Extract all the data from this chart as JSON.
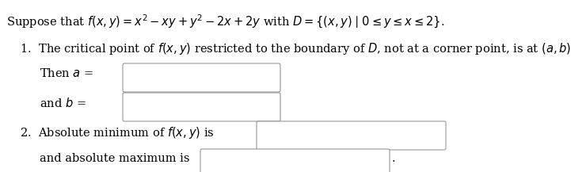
{
  "background_color": "#ffffff",
  "figsize": [
    7.21,
    2.17
  ],
  "dpi": 100,
  "line1": "Suppose that $f(x, y) = x^2 - xy + y^2 - 2x + 2y$ with $D = \\{(x, y) \\mid 0 \\leq y \\leq x \\leq 2\\}$.",
  "line2": "1.  The critical point of $f(x, y)$ restricted to the boundary of $D$, not at a corner point, is at $(a, b)$.",
  "line3_a": "Then $a$ =",
  "line4_a": "and $b$ =",
  "line5": "2.  Absolute minimum of $f(x, y)$ is",
  "line6": "and absolute maximum is",
  "period": ".",
  "font_size": 10.5,
  "box_color": "#ffffff",
  "box_edge_color": "#888888",
  "text_color": "#000000"
}
